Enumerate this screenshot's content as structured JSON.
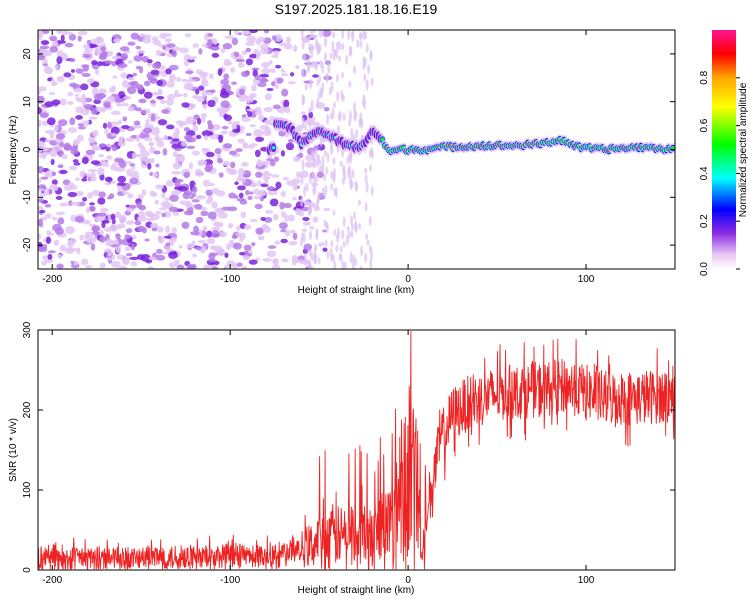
{
  "title": "S197.2025.181.18.16.E19",
  "chart_data": [
    {
      "type": "heatmap",
      "xlabel": "Height of straight line (km)",
      "ylabel": "Frequency (Hz)",
      "xlim": [
        -208,
        150
      ],
      "ylim": [
        -25,
        25
      ],
      "xticks": [
        -200,
        -100,
        0,
        100
      ],
      "yticks": [
        -20,
        -10,
        0,
        10,
        20
      ],
      "colorbar": {
        "label": "Normalized spectral amplitude",
        "range": [
          0,
          1
        ],
        "ticks": [
          0.0,
          0.2,
          0.4,
          0.6,
          0.8
        ],
        "colors": [
          "#ffffff",
          "#e8c8f5",
          "#8a2be2",
          "#0000ff",
          "#00ffff",
          "#00ff00",
          "#ffff00",
          "#ffa500",
          "#ff0000",
          "#ff1493"
        ]
      },
      "features": {
        "diffuse_noise_x_range": [
          -208,
          -60
        ],
        "ridge": [
          [
            -75,
            5
          ],
          [
            -70,
            5.5
          ],
          [
            -65,
            4
          ],
          [
            -60,
            1
          ],
          [
            -55,
            3
          ],
          [
            -50,
            4
          ],
          [
            -45,
            3
          ],
          [
            -40,
            2
          ],
          [
            -35,
            1
          ],
          [
            -30,
            0.5
          ],
          [
            -25,
            1
          ],
          [
            -20,
            4
          ],
          [
            -15,
            2
          ],
          [
            -10,
            -0.5
          ],
          [
            -5,
            0
          ],
          [
            0,
            0
          ],
          [
            10,
            0
          ],
          [
            20,
            0.5
          ],
          [
            40,
            0.8
          ],
          [
            60,
            0.8
          ],
          [
            75,
            1.2
          ],
          [
            85,
            2
          ],
          [
            90,
            1.5
          ],
          [
            95,
            0.5
          ],
          [
            110,
            0
          ],
          [
            130,
            0.5
          ],
          [
            150,
            0
          ]
        ]
      }
    },
    {
      "type": "line",
      "xlabel": "Height of straight line (km)",
      "ylabel": "SNR (10 * v/v)",
      "xlim": [
        -208,
        150
      ],
      "ylim": [
        0,
        300
      ],
      "xticks": [
        -200,
        -100,
        0,
        100
      ],
      "yticks": [
        0,
        100,
        200,
        300
      ],
      "series": [
        {
          "color": "#ee2222",
          "envelope_x": [
            -208,
            -150,
            -100,
            -80,
            -65,
            -50,
            -40,
            -30,
            -20,
            -10,
            -5,
            0,
            5,
            8,
            12,
            18,
            25,
            35,
            50,
            70,
            90,
            110,
            130,
            150
          ],
          "envelope_y": [
            15,
            15,
            17,
            18,
            22,
            35,
            42,
            45,
            40,
            60,
            95,
            120,
            110,
            10,
            90,
            160,
            195,
            210,
            220,
            225,
            230,
            215,
            215,
            220
          ]
        }
      ]
    }
  ]
}
